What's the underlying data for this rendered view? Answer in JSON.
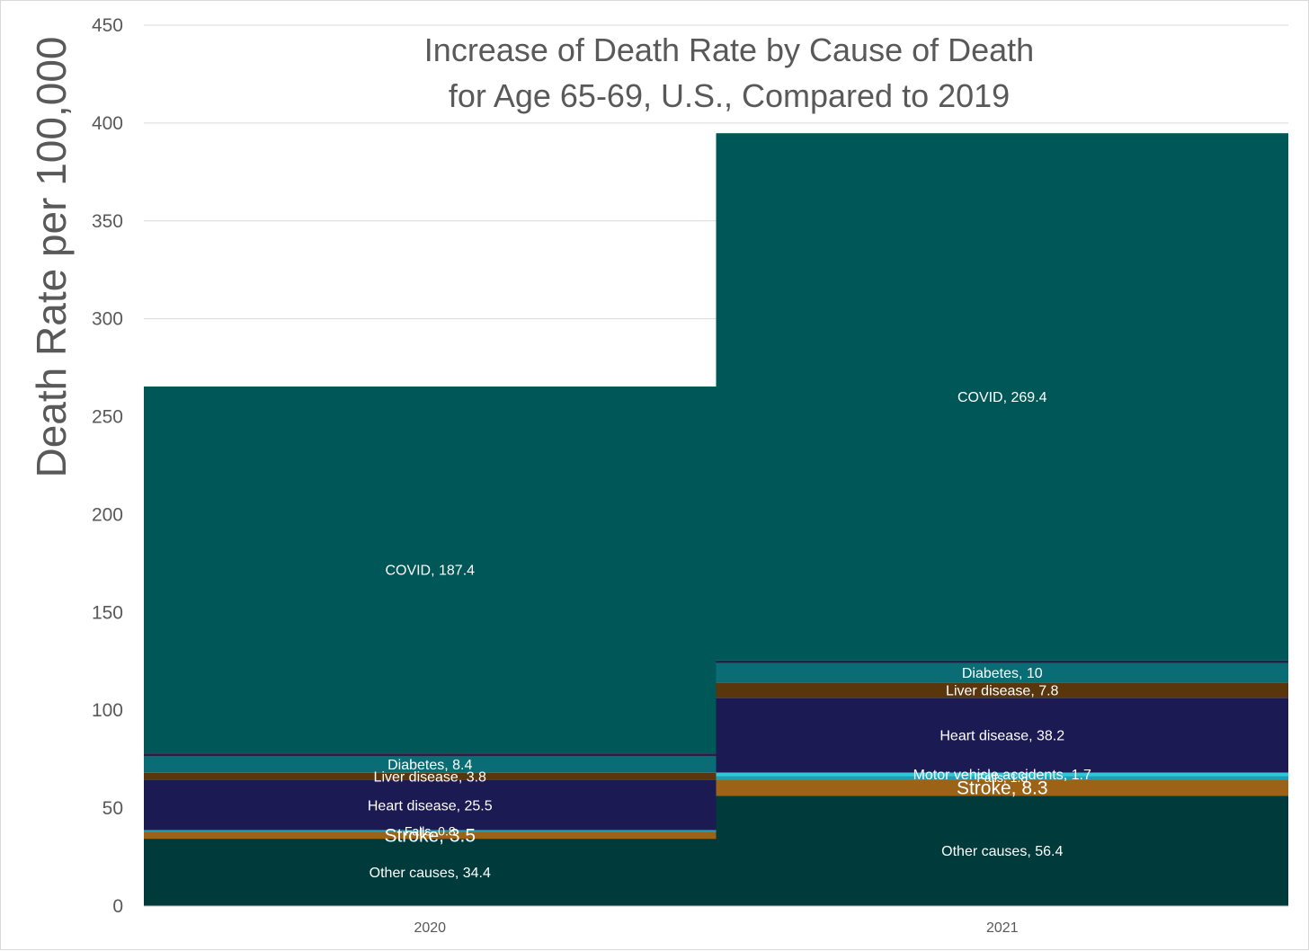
{
  "chart_data": {
    "type": "bar",
    "title_lines": [
      "Increase of Death Rate by Cause of Death",
      "for Age 65-69, U.S., Compared to 2019"
    ],
    "xlabel": "",
    "ylabel": "Death Rate per 100,000",
    "ylim": [
      0,
      450
    ],
    "yticks": [
      0,
      50,
      100,
      150,
      200,
      250,
      300,
      350,
      400,
      450
    ],
    "grid": true,
    "legend": "none",
    "categories": [
      "2020",
      "2021"
    ],
    "stacked": true,
    "series": [
      {
        "name": "Other causes",
        "color": "#003a3a",
        "values": [
          34.4,
          56.4
        ],
        "labels": [
          "Other causes, 34.4",
          "Other causes, 56.4"
        ],
        "label_size": 16
      },
      {
        "name": "Stroke",
        "color": "#9c6316",
        "values": [
          3.5,
          8.3
        ],
        "labels": [
          "Stroke, 3.5",
          "Stroke, 8.3"
        ],
        "label_size": 21
      },
      {
        "name": "Falls",
        "color": "#1e9fb3",
        "values": [
          0.8,
          1.8
        ],
        "labels": [
          "Falls, 0.8",
          "Falls, 1.8"
        ],
        "label_size": 14
      },
      {
        "name": "Motor vehicle accidents",
        "color": "#2ec8d8",
        "values": [
          0.1,
          1.7
        ],
        "labels": [
          "",
          "Motor vehicle accidents, 1.7"
        ],
        "label_size": 16
      },
      {
        "name": "Heart disease",
        "color": "#1c1a52",
        "values": [
          25.5,
          38.2
        ],
        "labels": [
          "Heart disease, 25.5",
          "Heart disease, 38.2"
        ],
        "label_size": 16
      },
      {
        "name": "Liver disease",
        "color": "#5a360c",
        "values": [
          3.8,
          7.8
        ],
        "labels": [
          "Liver disease, 3.8",
          "Liver disease, 7.8"
        ],
        "label_size": 16
      },
      {
        "name": "Diabetes",
        "color": "#0a6d75",
        "values": [
          8.4,
          10
        ],
        "labels": [
          "Diabetes, 8.4",
          "Diabetes, 10"
        ],
        "label_size": 16
      },
      {
        "name": "Other",
        "color": "#222244",
        "values": [
          1.5,
          1.2
        ],
        "labels": [
          "",
          ""
        ],
        "label_size": 14
      },
      {
        "name": "COVID",
        "color": "#005757",
        "values": [
          187.4,
          269.4
        ],
        "labels": [
          "COVID, 187.4",
          "COVID, 269.4"
        ],
        "label_size": 16
      }
    ]
  }
}
